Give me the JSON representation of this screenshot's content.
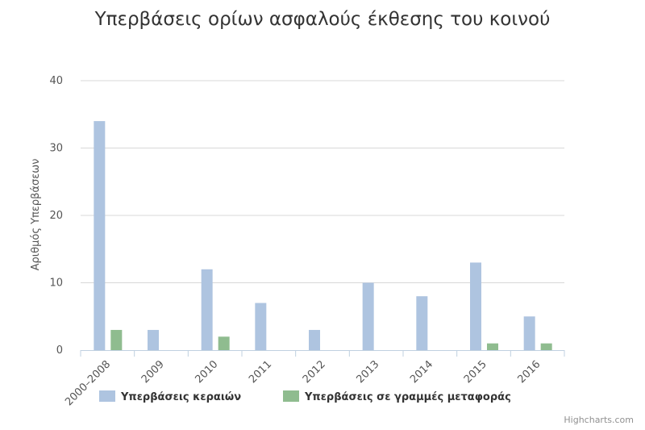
{
  "chart_data": {
    "type": "bar",
    "title": "Υπερβάσεις ορίων ασφαλούς έκθεσης του κοινού",
    "xlabel": "",
    "ylabel": "Αριθμός Υπερβάσεων",
    "categories": [
      "2000–2008",
      "2009",
      "2010",
      "2011",
      "2012",
      "2013",
      "2014",
      "2015",
      "2016"
    ],
    "series": [
      {
        "name": "Υπερβάσεις κεραιών",
        "color": "#aec4e0",
        "values": [
          34,
          3,
          12,
          7,
          3,
          10,
          8,
          13,
          5
        ]
      },
      {
        "name": "Υπερβάσεις σε γραμμές μεταφοράς",
        "color": "#8fbc8f",
        "values": [
          3,
          0,
          2,
          0,
          0,
          0,
          0,
          1,
          1
        ]
      }
    ],
    "ylim": [
      0,
      40
    ],
    "yticks": [
      0,
      10,
      20,
      30,
      40
    ],
    "grid": true,
    "legend": "bottom"
  },
  "credits": "Highcharts.com"
}
